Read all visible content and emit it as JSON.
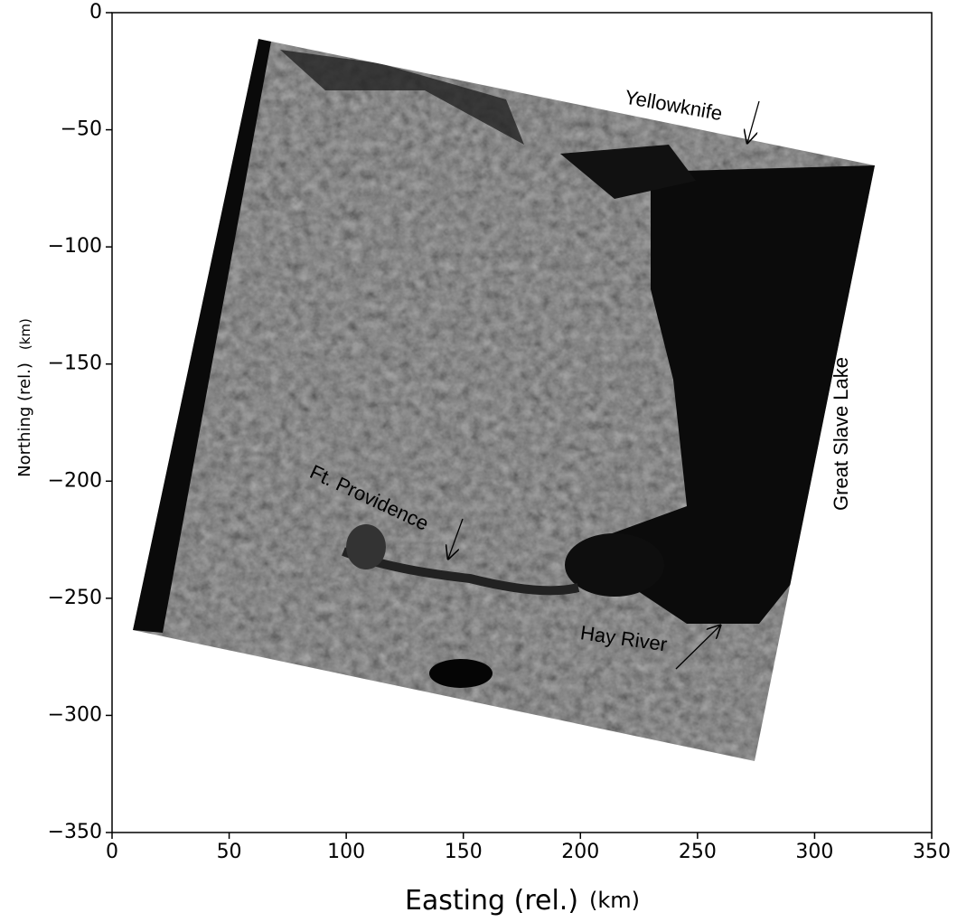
{
  "chart_data": {
    "type": "image",
    "xlabel": "Easting (rel.)",
    "xlabel_unit": "(km)",
    "ylabel": "Northing (rel.)",
    "ylabel_unit": "(km)",
    "xlim": [
      0,
      350
    ],
    "ylim": [
      -350,
      0
    ],
    "xticks": [
      0,
      50,
      100,
      150,
      200,
      250,
      300,
      350
    ],
    "yticks": [
      {
        "value": 0,
        "label": "0"
      },
      {
        "value": -50,
        "label": "−50"
      },
      {
        "value": -100,
        "label": "−100"
      },
      {
        "value": -150,
        "label": "−150"
      },
      {
        "value": -200,
        "label": "−200"
      },
      {
        "value": -250,
        "label": "−250"
      },
      {
        "value": -300,
        "label": "−300"
      },
      {
        "value": -350,
        "label": "−350"
      }
    ],
    "annotations": [
      "Yellowknife",
      "Ft. Providence",
      "Hay River",
      "Great Slave Lake"
    ]
  }
}
